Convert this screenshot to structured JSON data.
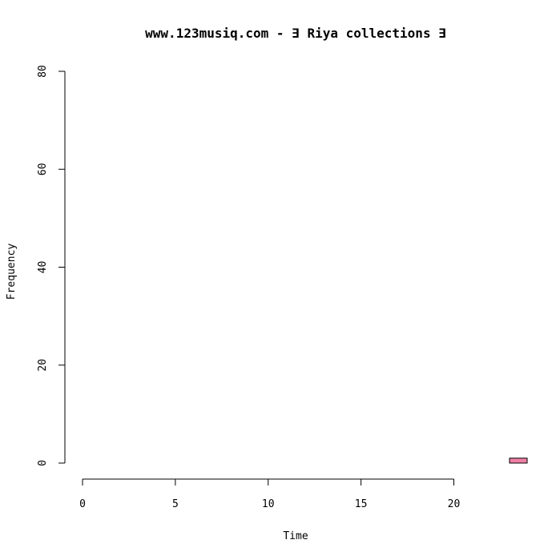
{
  "chart_data": {
    "type": "bar",
    "title": "www.123musiq.com -  ∃ Riya collections ∃",
    "xlabel": "Time",
    "ylabel": "Frequency",
    "xlim": [
      0,
      24
    ],
    "ylim": [
      0,
      80
    ],
    "x_ticks": [
      "0",
      "5",
      "10",
      "15",
      "20"
    ],
    "y_ticks": [
      "0",
      "20",
      "40",
      "60",
      "80"
    ],
    "bins": [
      {
        "start": 0,
        "end": 1,
        "value": 0
      },
      {
        "start": 1,
        "end": 2,
        "value": 0
      },
      {
        "start": 2,
        "end": 3,
        "value": 0
      },
      {
        "start": 3,
        "end": 4,
        "value": 0
      },
      {
        "start": 4,
        "end": 5,
        "value": 0
      },
      {
        "start": 5,
        "end": 6,
        "value": 0
      },
      {
        "start": 6,
        "end": 7,
        "value": 0
      },
      {
        "start": 7,
        "end": 8,
        "value": 0
      },
      {
        "start": 8,
        "end": 9,
        "value": 0
      },
      {
        "start": 9,
        "end": 10,
        "value": 0
      },
      {
        "start": 10,
        "end": 11,
        "value": 0
      },
      {
        "start": 11,
        "end": 12,
        "value": 0
      },
      {
        "start": 12,
        "end": 13,
        "value": 0
      },
      {
        "start": 13,
        "end": 14,
        "value": 0
      },
      {
        "start": 14,
        "end": 15,
        "value": 0
      },
      {
        "start": 15,
        "end": 16,
        "value": 0
      },
      {
        "start": 16,
        "end": 17,
        "value": 0
      },
      {
        "start": 17,
        "end": 18,
        "value": 0
      },
      {
        "start": 18,
        "end": 19,
        "value": 0
      },
      {
        "start": 19,
        "end": 20,
        "value": 0
      },
      {
        "start": 20,
        "end": 21,
        "value": 0
      },
      {
        "start": 21,
        "end": 22,
        "value": 0
      },
      {
        "start": 22,
        "end": 23,
        "value": 0
      },
      {
        "start": 23,
        "end": 24,
        "value": 1
      }
    ],
    "bar_color": "#f07fa4",
    "grid": false,
    "legend": "none"
  }
}
